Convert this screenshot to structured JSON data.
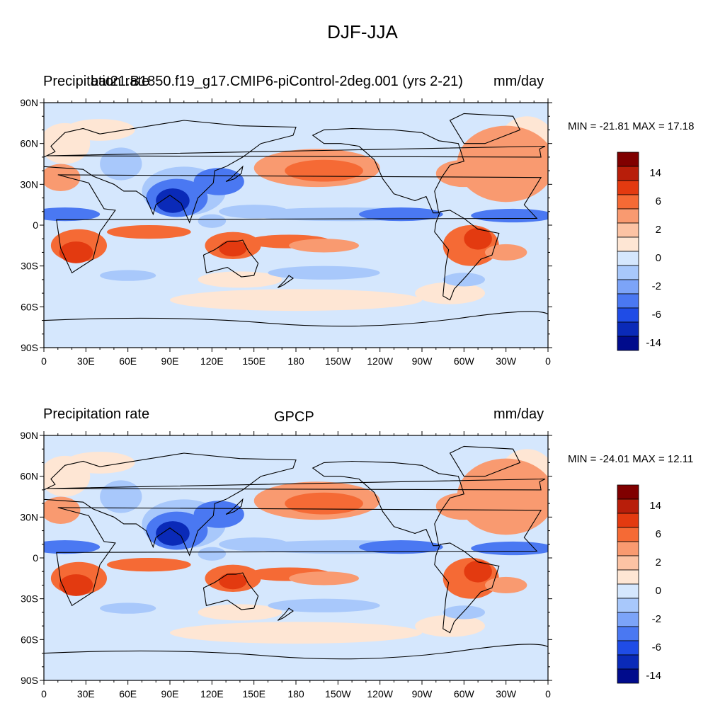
{
  "title": "DJF-JJA",
  "panels": [
    {
      "id": "model",
      "left_title": "Precipitation rate",
      "center_title": "bat21.B1850.f19_g17.CMIP6-piControl-2deg.001 (yrs 2-21)",
      "right_title": "mm/day",
      "stats": "MIN = -21.81 MAX =  17.18"
    },
    {
      "id": "obs",
      "left_title": "Precipitation rate",
      "center_title": "GPCP",
      "right_title": "mm/day",
      "stats": "MIN = -24.01 MAX =  12.11"
    }
  ],
  "lat_labels": [
    "90N",
    "60N",
    "30N",
    "0",
    "30S",
    "60S",
    "90S"
  ],
  "lon_labels": [
    "0",
    "30E",
    "60E",
    "90E",
    "120E",
    "150E",
    "180",
    "150W",
    "120W",
    "90W",
    "60W",
    "30W",
    "0"
  ],
  "colorbar": {
    "colors": [
      "#800000",
      "#b81e0a",
      "#e33a10",
      "#f56a35",
      "#f99a70",
      "#fcc3a4",
      "#fee6d4",
      "#d5e7fd",
      "#a8c8fb",
      "#7ca4f8",
      "#4a78f2",
      "#1f4ce6",
      "#0a2ab8",
      "#000b8c"
    ],
    "labels": [
      "14",
      "6",
      "2",
      "0",
      "-2",
      "-6",
      "-14"
    ]
  },
  "colors": {
    "strong_pos": "#e33a10",
    "pos": "#f56a35",
    "weak_pos": "#f99a70",
    "faint_pos": "#fee6d4",
    "faint_neg": "#d5e7fd",
    "weak_neg": "#a8c8fb",
    "neg": "#4a78f2",
    "strong_neg": "#0a2ab8"
  }
}
